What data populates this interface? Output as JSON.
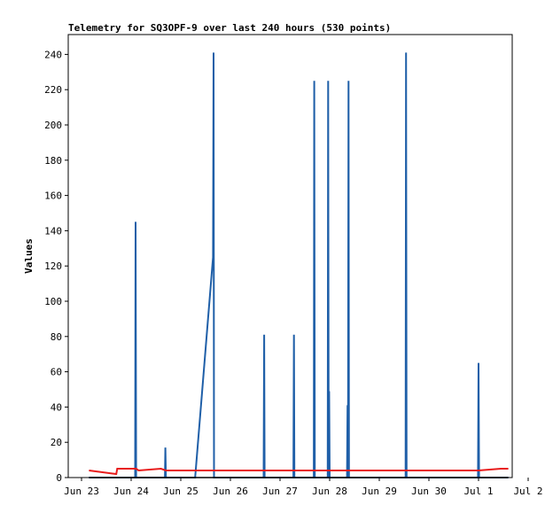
{
  "chart_data": {
    "type": "line",
    "title": "Telemetry for SQ3OPF-9 over last 240 hours (530 points)",
    "xlabel": "",
    "ylabel": "Values",
    "ylim": [
      0,
      255
    ],
    "xlim": [
      0,
      9
    ],
    "x_unit": "days since Jun 23",
    "x_tick_values": [
      0,
      1,
      2,
      3,
      4,
      5,
      6,
      7,
      8,
      9
    ],
    "x_tick_labels": [
      "Jun 23",
      "Jun 24",
      "Jun 25",
      "Jun 26",
      "Jun 27",
      "Jun 28",
      "Jun 29",
      "Jun 30",
      "Jul 1",
      "Jul 2"
    ],
    "y_ticks": [
      0,
      20,
      40,
      60,
      80,
      100,
      120,
      140,
      160,
      180,
      200,
      220,
      240
    ],
    "grid": false,
    "legend": "none",
    "series": [
      {
        "color": "#1f5fa8",
        "style": "line",
        "points": [
          [
            0.15,
            0
          ],
          [
            1.08,
            0
          ],
          [
            1.09,
            145
          ],
          [
            1.1,
            0
          ],
          [
            1.68,
            0
          ],
          [
            1.69,
            17
          ],
          [
            1.7,
            0
          ],
          [
            2.29,
            0
          ],
          [
            2.65,
            125
          ],
          [
            2.66,
            241
          ],
          [
            2.67,
            0
          ],
          [
            3.67,
            0
          ],
          [
            3.68,
            81
          ],
          [
            3.69,
            0
          ],
          [
            4.27,
            0
          ],
          [
            4.28,
            81
          ],
          [
            4.29,
            0
          ],
          [
            4.68,
            0
          ],
          [
            4.69,
            225
          ],
          [
            4.7,
            0
          ],
          [
            4.96,
            0
          ],
          [
            4.97,
            225
          ],
          [
            4.98,
            0
          ],
          [
            4.99,
            49
          ],
          [
            5.0,
            0
          ],
          [
            5.35,
            0
          ],
          [
            5.36,
            41
          ],
          [
            5.37,
            0
          ],
          [
            5.38,
            225
          ],
          [
            5.39,
            0
          ],
          [
            6.53,
            0
          ],
          [
            6.54,
            241
          ],
          [
            6.55,
            0
          ],
          [
            7.99,
            0
          ],
          [
            8.0,
            65
          ],
          [
            8.01,
            0
          ],
          [
            8.6,
            0
          ]
        ]
      },
      {
        "color": "#e81c1c",
        "style": "line",
        "points": [
          [
            0.15,
            4
          ],
          [
            0.7,
            2
          ],
          [
            0.72,
            5
          ],
          [
            1.1,
            5
          ],
          [
            1.15,
            4
          ],
          [
            1.6,
            5
          ],
          [
            1.7,
            4
          ],
          [
            2.5,
            4
          ],
          [
            4.5,
            4
          ],
          [
            5.3,
            4
          ],
          [
            6.5,
            4
          ],
          [
            8.0,
            4
          ],
          [
            8.45,
            5
          ],
          [
            8.6,
            5
          ]
        ]
      },
      {
        "color": "#000000",
        "style": "line",
        "points": [
          [
            0.15,
            0
          ],
          [
            8.6,
            0
          ]
        ]
      }
    ]
  }
}
